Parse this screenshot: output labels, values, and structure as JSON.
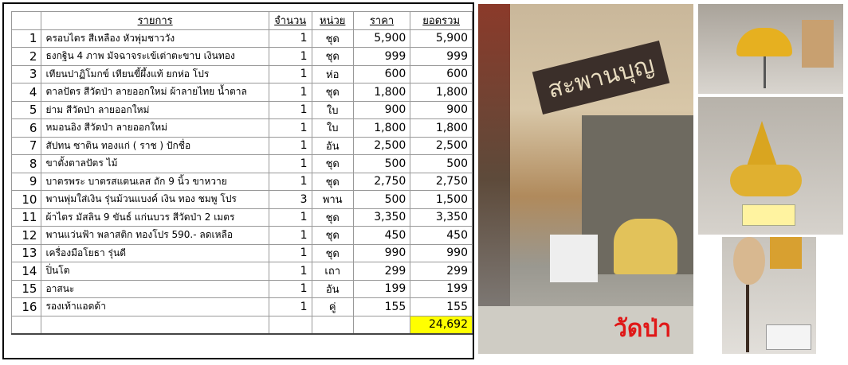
{
  "table": {
    "headers": [
      "",
      "รายการ",
      "จำนวน",
      "หน่วย",
      "ราคา",
      "ยอดรวม"
    ],
    "rows": [
      [
        "1",
        "ครอบไตร  สีเหลือง หัวพุ่มชาววัง",
        "1",
        "ชุด",
        "5,900",
        "5,900"
      ],
      [
        "2",
        "ธงกฐิน  4 ภาพ มัจฉาจระเข้เต่าตะขาบ  เงินทอง",
        "1",
        "ชุด",
        "999",
        "999"
      ],
      [
        "3",
        "เทียนปาฏิโมกข์ เทียนขี้ผึ้งแท้ ยกห่อ โปร",
        "1",
        "ห่อ",
        "600",
        "600"
      ],
      [
        "4",
        "ตาลปัตร สีวัดป่า ลายออกใหม่  ผ้าลายไทย น้ำตาล",
        "1",
        "ชุด",
        "1,800",
        "1,800"
      ],
      [
        "5",
        "ย่าม สีวัดป่า ลายออกใหม่",
        "1",
        "ใบ",
        "900",
        "900"
      ],
      [
        "6",
        "หมอนอิง  สีวัดป่า ลายออกใหม่",
        "1",
        "ใบ",
        "1,800",
        "1,800"
      ],
      [
        "7",
        "สัปทน ซาติน ทองแก่ ( ราช )  ปักชื่อ",
        "1",
        "อัน",
        "2,500",
        "2,500"
      ],
      [
        "8",
        "ขาตั้งตาลปัตร  ไม้",
        "1",
        "ชุด",
        "500",
        "500"
      ],
      [
        "9",
        "บาตรพระ บาตรสแตนเลส   ถัก  9 นิ้ว ขาหวาย",
        "1",
        "ชุด",
        "2,750",
        "2,750"
      ],
      [
        "10",
        "พานพุ่มใส่เงิน รุ่นม้วนแบงค์ เงิน ทอง ชมพู โปร",
        "3",
        "พาน",
        "500",
        "1,500"
      ],
      [
        "11",
        "ผ้าไตร  มัสลิน 9 ขันธ์ แก่นบวร สีวัดป่า 2 เมตร",
        "1",
        "ชุด",
        "3,350",
        "3,350"
      ],
      [
        "12",
        "พานแว่นฟ้า พลาสติก ทองโปร  590.- ลดเหลือ",
        "1",
        "ชุด",
        "450",
        "450"
      ],
      [
        "13",
        "เครื่องมือโยธา รุ่นดี",
        "1",
        "ชุด",
        "990",
        "990"
      ],
      [
        "14",
        "ปิ่นโต",
        "1",
        "เถา",
        "299",
        "299"
      ],
      [
        "15",
        "อาสนะ",
        "1",
        "อัน",
        "199",
        "199"
      ],
      [
        "16",
        "รองเท้าแอดด้า",
        "1",
        "คู่",
        "155",
        "155"
      ]
    ],
    "grand_total": "24,692",
    "highlight_color": "#ffff00"
  },
  "photos": {
    "storefront_sign": "สะพานบุญ",
    "storefront_caption": "วัดป่า",
    "caption_color": "#e01818"
  }
}
